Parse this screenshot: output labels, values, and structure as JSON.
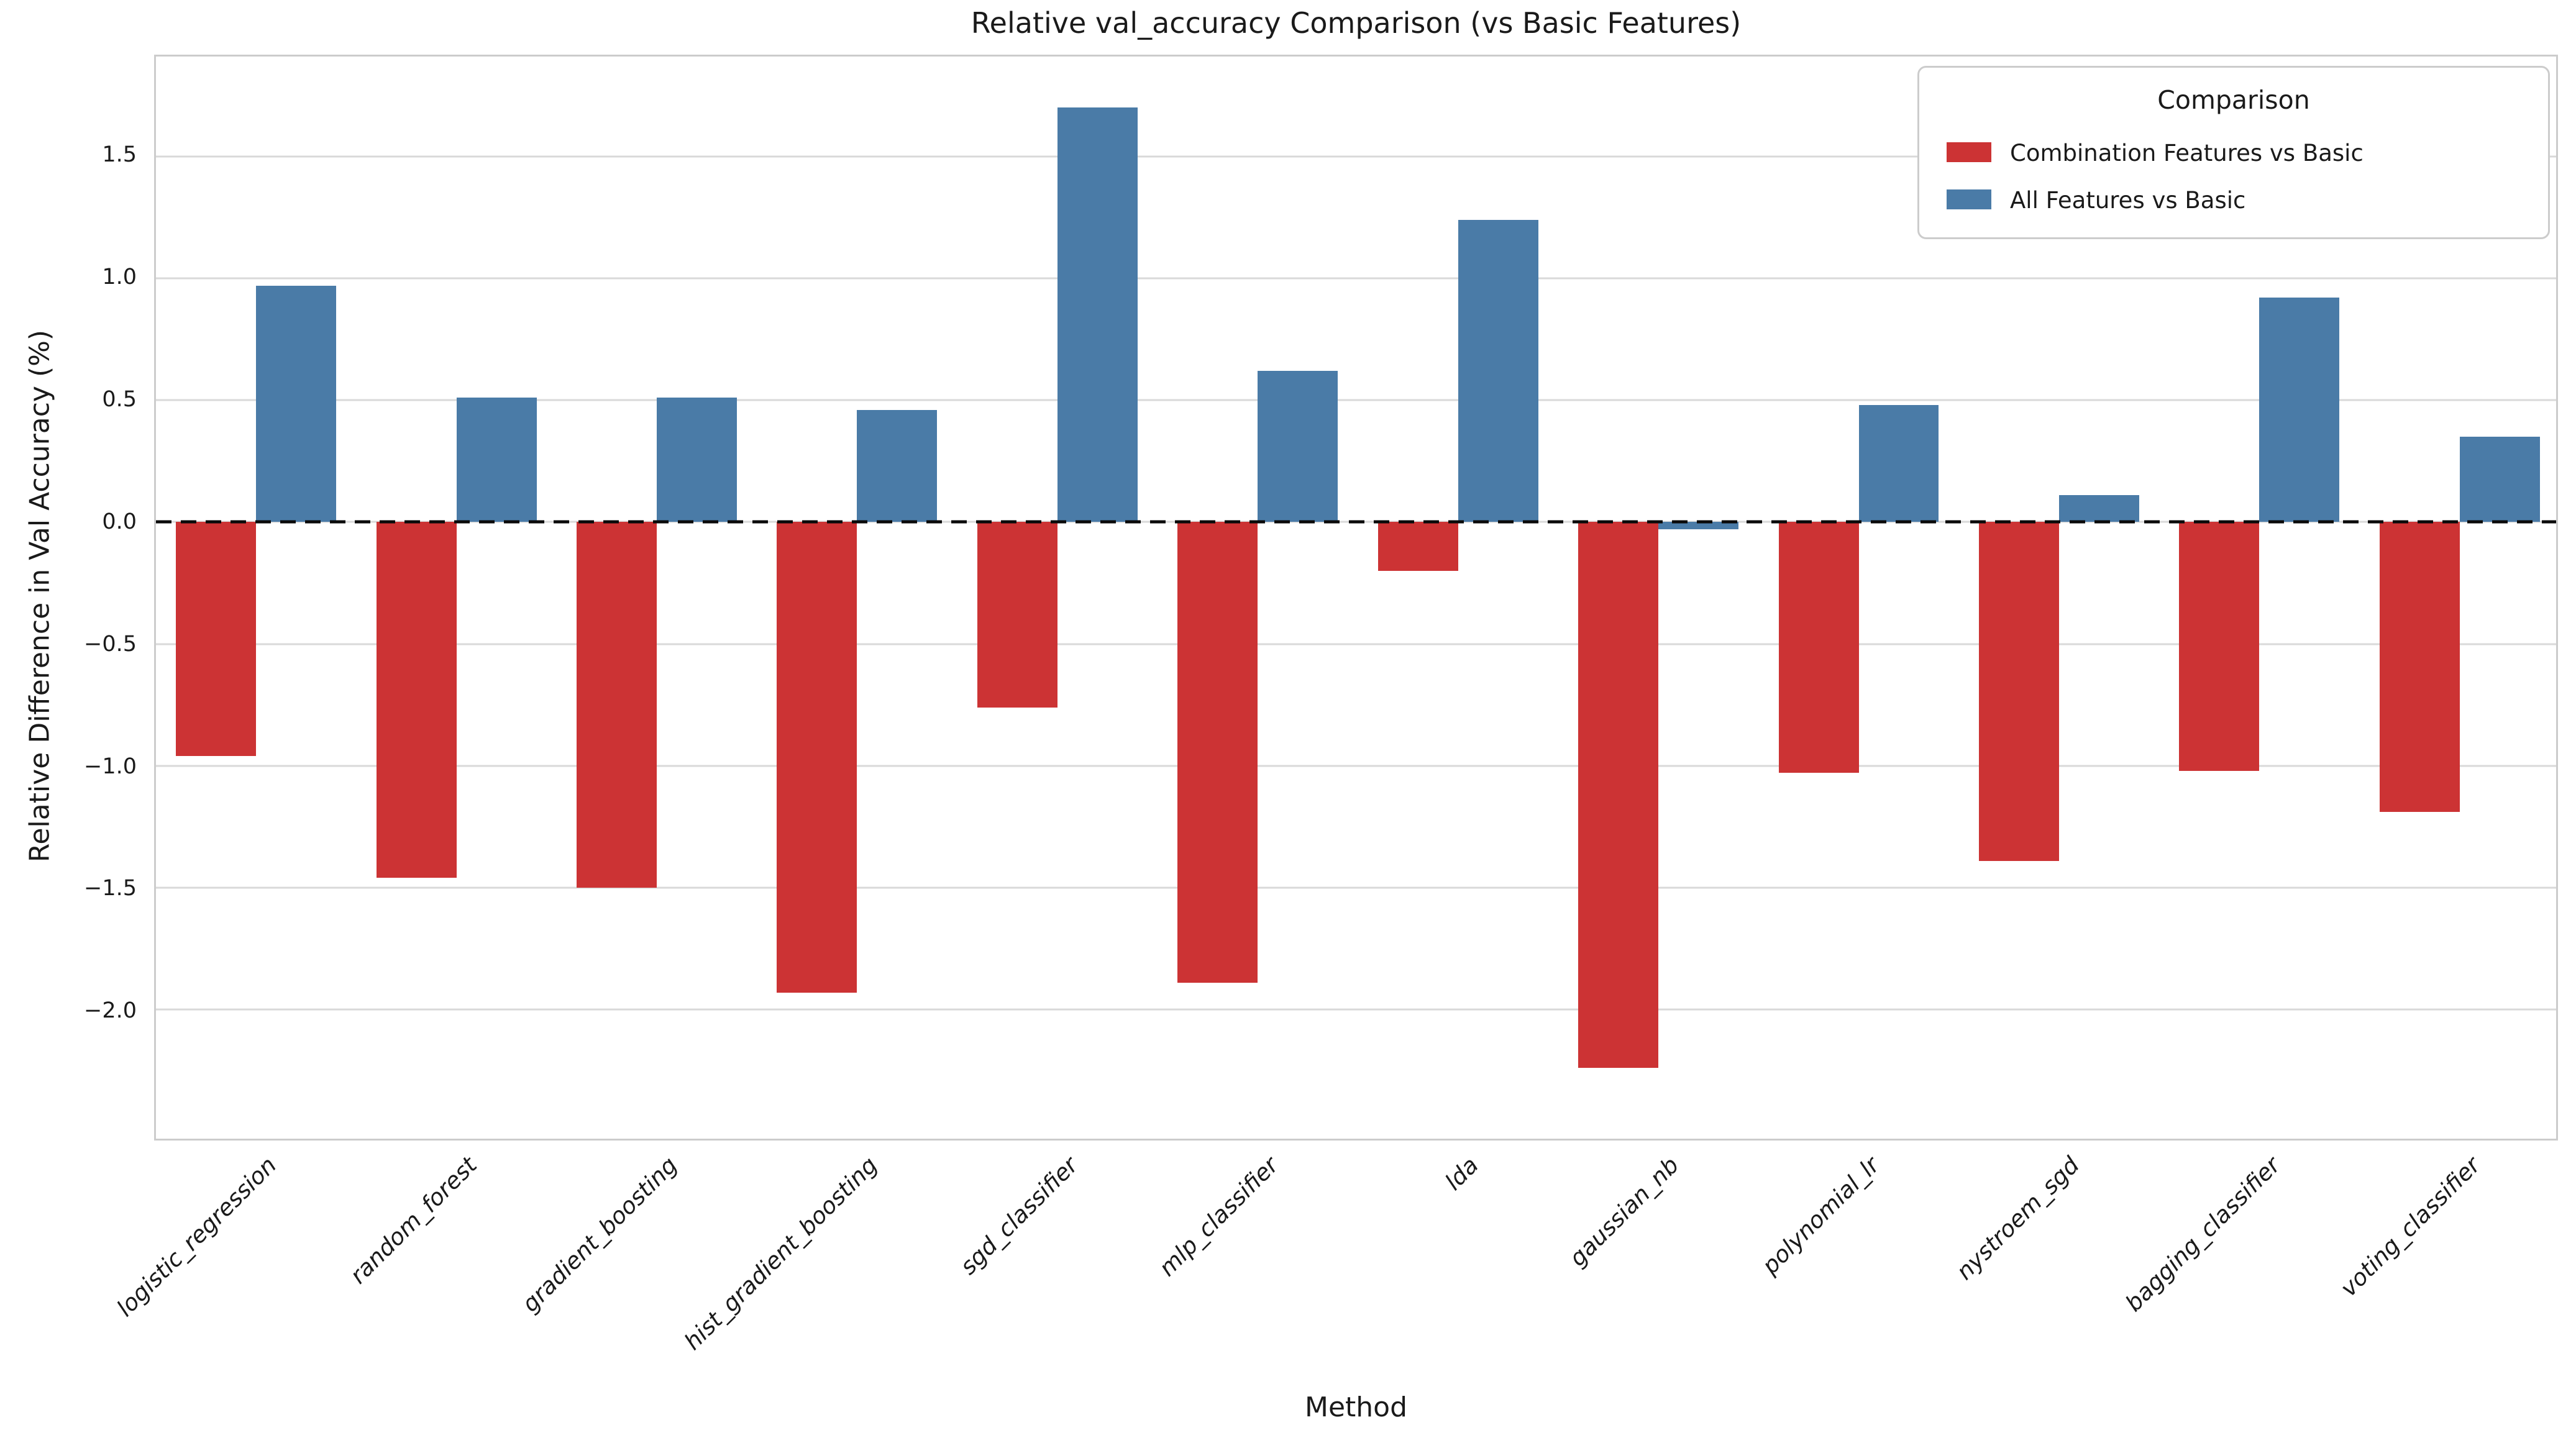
{
  "chart_data": {
    "type": "bar",
    "title": "Relative val_accuracy Comparison (vs Basic Features)",
    "xlabel": "Method",
    "ylabel": "Relative Difference in Val Accuracy (%)",
    "categories": [
      "logistic_regression",
      "random_forest",
      "gradient_boosting",
      "hist_gradient_boosting",
      "sgd_classifier",
      "mlp_classifier",
      "lda",
      "gaussian_nb",
      "polynomial_lr",
      "nystroem_sgd",
      "bagging_classifier",
      "voting_classifier"
    ],
    "series": [
      {
        "name": "Combination Features vs Basic",
        "color": "#cc3334",
        "values": [
          -0.96,
          -1.46,
          -1.5,
          -1.93,
          -0.76,
          -1.89,
          -0.2,
          -2.24,
          -1.03,
          -1.39,
          -1.02,
          -1.19
        ]
      },
      {
        "name": "All Features vs Basic",
        "color": "#4a7ba7",
        "values": [
          0.97,
          0.51,
          0.51,
          0.46,
          1.7,
          0.62,
          1.24,
          -0.03,
          0.48,
          0.11,
          0.92,
          0.35
        ]
      }
    ],
    "ylim": [
      -2.53,
      1.91
    ],
    "yticks": [
      1.5,
      1.0,
      0.5,
      0.0,
      -0.5,
      -1.0,
      -1.5,
      -2.0
    ],
    "zero_line_dashed": true,
    "grid": true,
    "bar_group_width": 0.8,
    "legend": {
      "title": "Comparison",
      "position": "upper right"
    },
    "colors": {
      "grid": "#d9d9d9",
      "spine": "#cccccc",
      "zero_line": "#0a0a0a",
      "background": "#ffffff"
    }
  }
}
